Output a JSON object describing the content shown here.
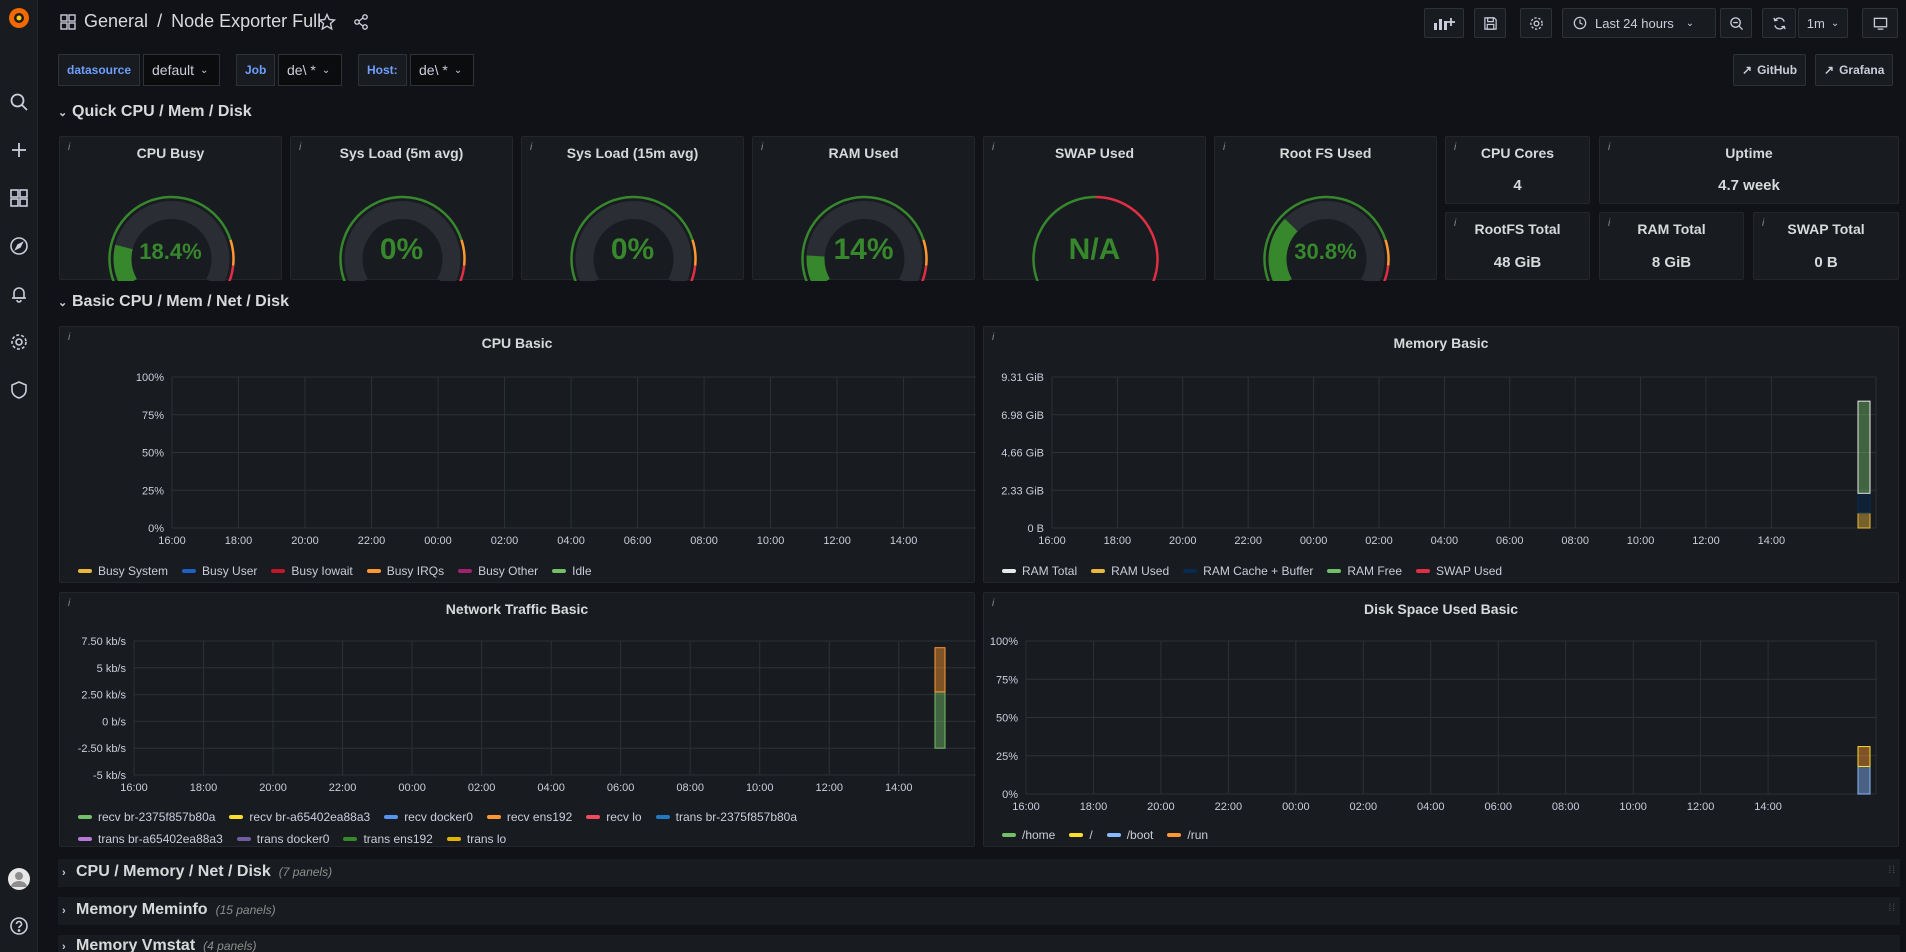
{
  "breadcrumb": {
    "folder": "General",
    "separator": "/",
    "dashboard": "Node Exporter Full"
  },
  "toolbar": {
    "time_range": "Last 24 hours",
    "refresh_interval": "1m"
  },
  "variables": [
    {
      "label": "datasource",
      "value": "default"
    },
    {
      "label": "Job",
      "value": "de\\ *"
    },
    {
      "label": "Host:",
      "value": "de\\ *"
    }
  ],
  "links": [
    {
      "label": "GitHub"
    },
    {
      "label": "Grafana"
    }
  ],
  "rows": {
    "quick": "Quick CPU / Mem / Disk",
    "basic": "Basic CPU / Mem / Net / Disk",
    "collapsed": [
      {
        "title": "CPU / Memory / Net / Disk",
        "count": "(7 panels)"
      },
      {
        "title": "Memory Meminfo",
        "count": "(15 panels)"
      },
      {
        "title": "Memory Vmstat",
        "count": "(4 panels)"
      }
    ]
  },
  "gauges": [
    {
      "title": "CPU Busy",
      "value": "18.4%",
      "fraction": 0.184
    },
    {
      "title": "Sys Load (5m avg)",
      "value": "0%",
      "fraction": 0
    },
    {
      "title": "Sys Load (15m avg)",
      "value": "0%",
      "fraction": 0
    },
    {
      "title": "RAM Used",
      "value": "14%",
      "fraction": 0.14
    },
    {
      "title": "SWAP Used",
      "value": "N/A",
      "fraction": null
    },
    {
      "title": "Root FS Used",
      "value": "30.8%",
      "fraction": 0.308
    }
  ],
  "stats": [
    {
      "title": "CPU Cores",
      "value": "4"
    },
    {
      "title": "Uptime",
      "value": "4.7 week"
    },
    {
      "title": "RootFS Total",
      "value": "48 GiB"
    },
    {
      "title": "RAM Total",
      "value": "8 GiB"
    },
    {
      "title": "SWAP Total",
      "value": "0 B"
    }
  ],
  "chart_data": [
    {
      "type": "area",
      "title": "CPU Basic",
      "x_ticks": [
        "16:00",
        "18:00",
        "20:00",
        "22:00",
        "00:00",
        "02:00",
        "04:00",
        "06:00",
        "08:00",
        "10:00",
        "12:00",
        "14:00"
      ],
      "y_ticks": [
        "100%",
        "75%",
        "50%",
        "25%",
        "0%"
      ],
      "ylim": [
        0,
        100
      ],
      "series": [
        {
          "name": "Busy System",
          "color": "#eab839"
        },
        {
          "name": "Busy User",
          "color": "#1f60c4"
        },
        {
          "name": "Busy Iowait",
          "color": "#c4162a"
        },
        {
          "name": "Busy IRQs",
          "color": "#ff9830"
        },
        {
          "name": "Busy Other",
          "color": "#a0226e"
        },
        {
          "name": "Idle",
          "color": "#73bf69"
        }
      ]
    },
    {
      "type": "area",
      "title": "Memory Basic",
      "x_ticks": [
        "16:00",
        "18:00",
        "20:00",
        "22:00",
        "00:00",
        "02:00",
        "04:00",
        "06:00",
        "08:00",
        "10:00",
        "12:00",
        "14:00"
      ],
      "y_ticks": [
        "9.31 GiB",
        "6.98 GiB",
        "4.66 GiB",
        "2.33 GiB",
        "0 B"
      ],
      "series": [
        {
          "name": "RAM Total",
          "color": "#e8e8e8"
        },
        {
          "name": "RAM Used",
          "color": "#eab839"
        },
        {
          "name": "RAM Cache + Buffer",
          "color": "#052b51"
        },
        {
          "name": "RAM Free",
          "color": "#73bf69"
        },
        {
          "name": "SWAP Used",
          "color": "#e02f44"
        }
      ]
    },
    {
      "type": "area",
      "title": "Network Traffic Basic",
      "x_ticks": [
        "16:00",
        "18:00",
        "20:00",
        "22:00",
        "00:00",
        "02:00",
        "04:00",
        "06:00",
        "08:00",
        "10:00",
        "12:00",
        "14:00"
      ],
      "y_ticks": [
        "7.50 kb/s",
        "5 kb/s",
        "2.50 kb/s",
        "0 b/s",
        "-2.50 kb/s",
        "-5 kb/s"
      ],
      "series": [
        {
          "name": "recv br-2375f857b80a",
          "color": "#73bf69"
        },
        {
          "name": "recv br-a65402ea88a3",
          "color": "#fade2a"
        },
        {
          "name": "recv docker0",
          "color": "#5794f2"
        },
        {
          "name": "recv ens192",
          "color": "#ff9830"
        },
        {
          "name": "recv lo",
          "color": "#f2495c"
        },
        {
          "name": "trans br-2375f857b80a",
          "color": "#1f78c1"
        },
        {
          "name": "trans br-a65402ea88a3",
          "color": "#b877d9"
        },
        {
          "name": "trans docker0",
          "color": "#705da0"
        },
        {
          "name": "trans ens192",
          "color": "#37872d"
        },
        {
          "name": "trans lo",
          "color": "#e0b400"
        }
      ]
    },
    {
      "type": "area",
      "title": "Disk Space Used Basic",
      "x_ticks": [
        "16:00",
        "18:00",
        "20:00",
        "22:00",
        "00:00",
        "02:00",
        "04:00",
        "06:00",
        "08:00",
        "10:00",
        "12:00",
        "14:00"
      ],
      "y_ticks": [
        "100%",
        "75%",
        "50%",
        "25%",
        "0%"
      ],
      "ylim": [
        0,
        100
      ],
      "series": [
        {
          "name": "/home",
          "color": "#73bf69"
        },
        {
          "name": "/",
          "color": "#fade2a"
        },
        {
          "name": "/boot",
          "color": "#8ab8ff"
        },
        {
          "name": "/run",
          "color": "#ff9830"
        }
      ]
    }
  ]
}
